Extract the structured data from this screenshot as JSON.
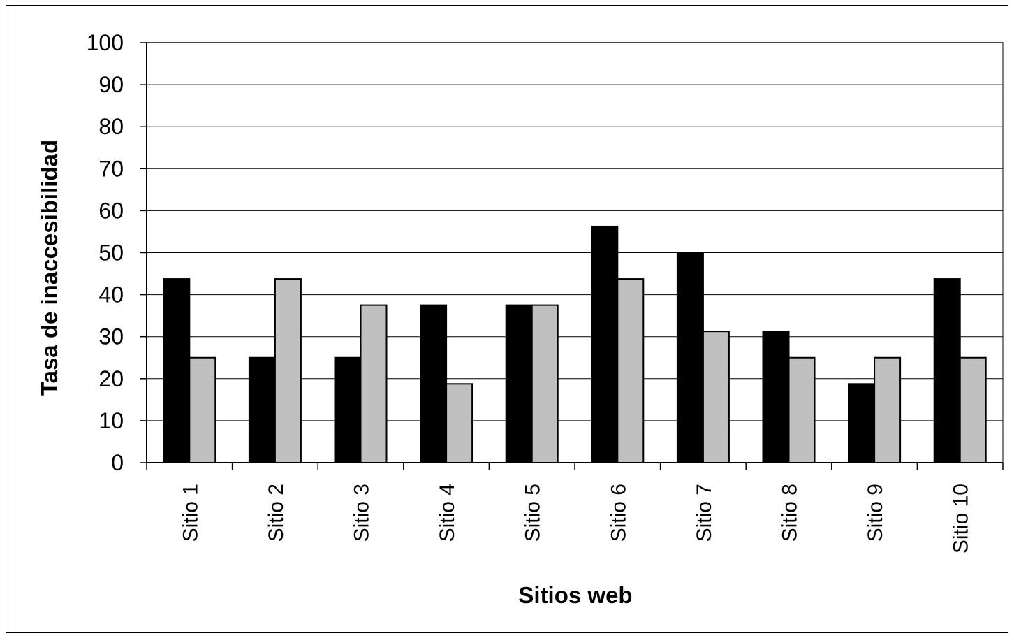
{
  "chart_data": {
    "type": "bar",
    "title": "",
    "xlabel": "Sitios web",
    "ylabel": "Tasa de inaccesibilidad",
    "ylim": [
      0,
      100
    ],
    "yticks": [
      0,
      10,
      20,
      30,
      40,
      50,
      60,
      70,
      80,
      90,
      100
    ],
    "categories": [
      "Sitio 1",
      "Sitio 2",
      "Sitio 3",
      "Sitio 4",
      "Sitio 5",
      "Sitio 6",
      "Sitio 7",
      "Sitio 8",
      "Sitio 9",
      "Sitio 10"
    ],
    "series": [
      {
        "values": [
          43.75,
          25,
          25,
          37.5,
          37.5,
          56.25,
          50,
          31.25,
          18.75,
          43.75
        ],
        "color": "#000000"
      },
      {
        "values": [
          25,
          43.75,
          37.5,
          18.75,
          37.5,
          43.75,
          31.25,
          25,
          25,
          25
        ],
        "color": "#c0c0c0"
      }
    ],
    "grid": true,
    "legend": "none",
    "plot_background": "#ffffff"
  }
}
